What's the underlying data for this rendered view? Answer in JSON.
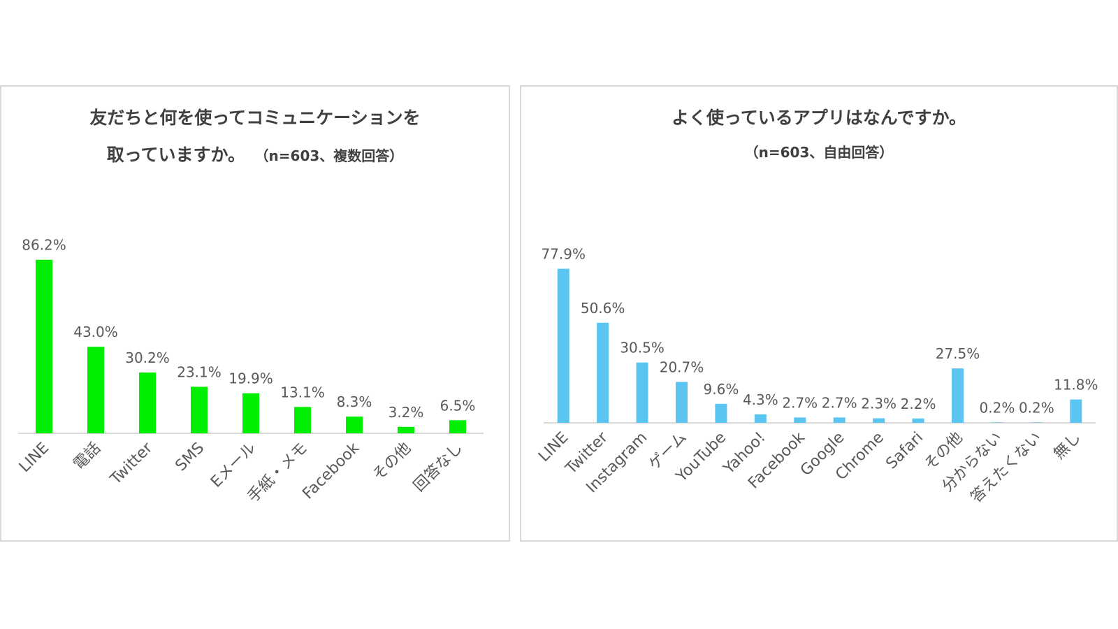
{
  "chart_data": [
    {
      "type": "bar",
      "title_line1": "友だちと何を使ってコミュニケーションを",
      "title_line2": "取っていますか。",
      "subtitle": "（n=603、複数回答）",
      "categories": [
        "LINE",
        "電話",
        "Twitter",
        "SMS",
        "Eメール",
        "手紙・メモ",
        "Facebook",
        "その他",
        "回答なし"
      ],
      "values": [
        86.2,
        43.0,
        30.2,
        23.1,
        19.9,
        13.1,
        8.3,
        3.2,
        6.5
      ],
      "value_labels": [
        "86.2%",
        "43.0%",
        "30.2%",
        "23.1%",
        "19.9%",
        "13.1%",
        "8.3%",
        "3.2%",
        "6.5%"
      ],
      "bar_color": "#00ee00",
      "ylim": [
        0,
        100
      ],
      "xlabel": "",
      "ylabel": "",
      "grid": false,
      "legend": "none"
    },
    {
      "type": "bar",
      "title_line1": "よく使っているアプリはなんですか。",
      "subtitle": "（n=603、自由回答）",
      "categories": [
        "LINE",
        "Twitter",
        "Instagram",
        "ゲーム",
        "YouTube",
        "Yahoo!",
        "Facebook",
        "Google",
        "Chrome",
        "Safari",
        "その他",
        "分からない",
        "答えたくない",
        "無し"
      ],
      "values": [
        77.9,
        50.6,
        30.5,
        20.7,
        9.6,
        4.3,
        2.7,
        2.7,
        2.3,
        2.2,
        27.5,
        0.2,
        0.2,
        11.8
      ],
      "value_labels": [
        "77.9%",
        "50.6%",
        "30.5%",
        "20.7%",
        "9.6%",
        "4.3%",
        "2.7%",
        "2.7%",
        "2.3%",
        "2.2%",
        "27.5%",
        "0.2%",
        "0.2%",
        "11.8%"
      ],
      "bar_color": "#5bc5f2",
      "ylim": [
        0,
        100
      ],
      "xlabel": "",
      "ylabel": "",
      "grid": false,
      "legend": "none"
    }
  ]
}
